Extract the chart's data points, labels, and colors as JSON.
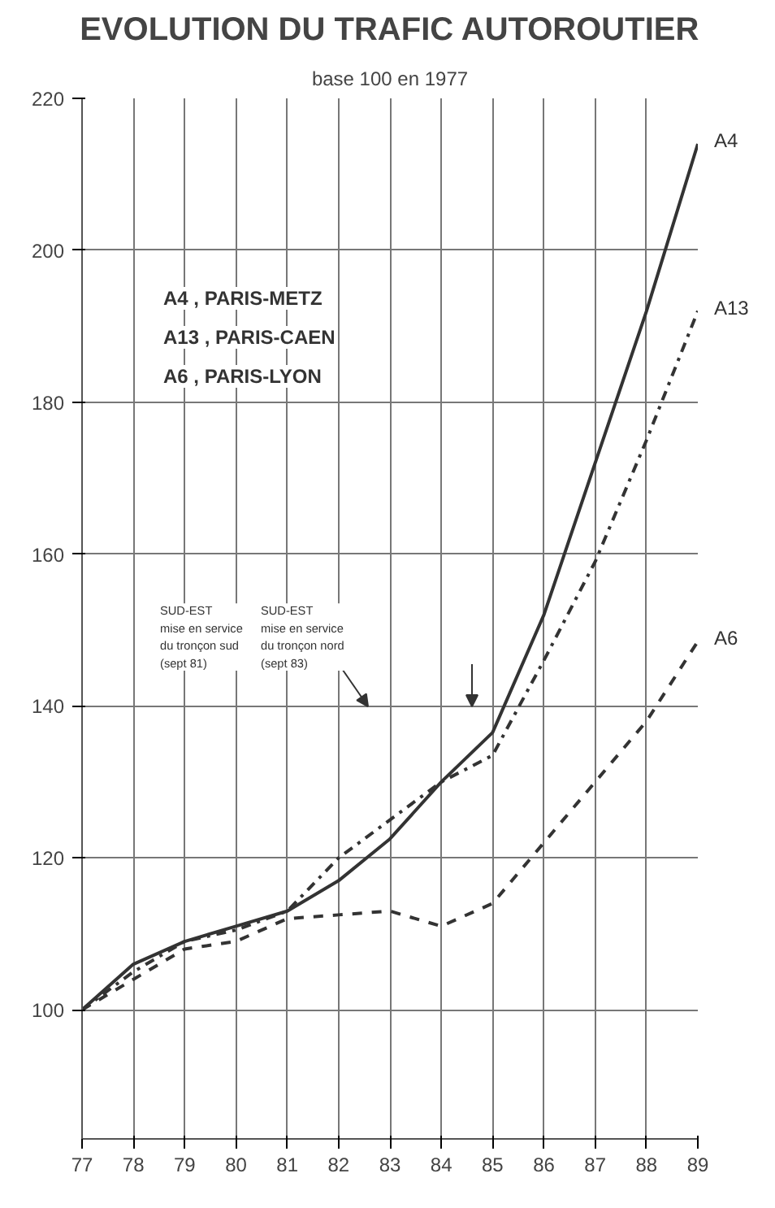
{
  "chart_data": {
    "type": "line",
    "title": "EVOLUTION DU TRAFIC AUTOROUTIER",
    "subtitle": "base 100 en 1977",
    "x": [
      77,
      78,
      79,
      80,
      81,
      82,
      83,
      84,
      85,
      86,
      87,
      88,
      89
    ],
    "series": [
      {
        "name": "A4",
        "color": "#333333",
        "line_style": "solid",
        "values": [
          100,
          106,
          109,
          111,
          113,
          117,
          122.5,
          130,
          136.5,
          152,
          172,
          192,
          214
        ]
      },
      {
        "name": "A13",
        "color": "#333333",
        "line_style": "dashdot",
        "values": [
          100,
          105,
          109,
          110.5,
          113,
          120,
          125,
          130,
          133.5,
          146,
          159,
          175,
          192
        ]
      },
      {
        "name": "A6",
        "color": "#333333",
        "line_style": "dashed",
        "values": [
          100,
          104,
          108,
          109,
          112,
          112.5,
          113,
          111,
          114,
          122,
          130,
          138,
          148.5
        ]
      }
    ],
    "annotations": [
      "A4 , PARIS-METZ",
      "A13 , PARIS-CAEN",
      "A6 , PARIS-LYON",
      "SUD-EST\nmise en service\ndu tronçon sud\n(sept 81)",
      "SUD-EST\nmise en service\ndu tronçon nord\n(sept 83)"
    ],
    "xlim": [
      77,
      89
    ],
    "ylim": [
      83,
      220
    ],
    "xticks": [
      77,
      78,
      79,
      80,
      81,
      82,
      83,
      84,
      85,
      86,
      87,
      88,
      89
    ],
    "yticks": [
      100,
      120,
      140,
      160,
      180,
      200,
      220
    ],
    "grid": true,
    "marker": "none"
  }
}
